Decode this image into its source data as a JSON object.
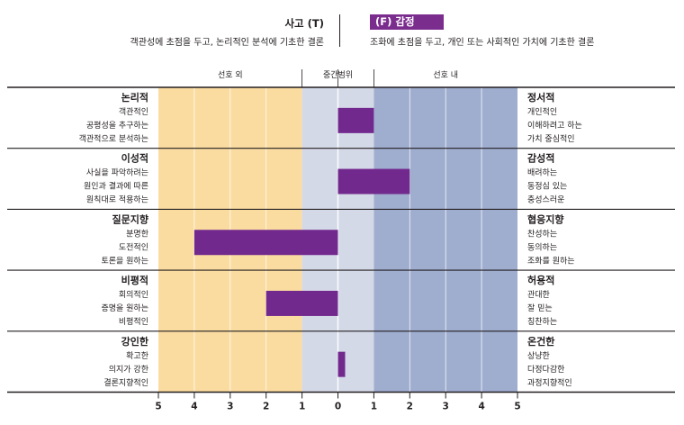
{
  "header": {
    "left_title": "사고 (T)",
    "left_subtitle": "객관성에 초점을 두고, 논리적인 분석에 기초한 결론",
    "right_title": "(F) 감정",
    "right_subtitle": "조화에 초점을 두고, 개인 또는 사회적인 가치에 기초한 결론",
    "highlight_color": "#7b2d8e"
  },
  "zones": {
    "left_label": "선호 외",
    "center_label": "중간범위",
    "right_label": "선호 내",
    "colors": {
      "left": "#fbdca0",
      "center": "#d4d9e8",
      "right": "#9fadcf"
    }
  },
  "chart_data": {
    "type": "bar",
    "orientation": "horizontal",
    "xlim": [
      -5,
      5
    ],
    "x_ticks": [
      -5,
      -4,
      -3,
      -2,
      -1,
      0,
      1,
      2,
      3,
      4,
      5
    ],
    "x_tick_labels": [
      "5",
      "4",
      "3",
      "2",
      "1",
      "0",
      "1",
      "2",
      "3",
      "4",
      "5"
    ],
    "bar_color": "#72298d",
    "rows": [
      {
        "left_title": "논리적",
        "left_items": [
          "객관적인",
          "공평성을 추구하는",
          "객관적으로 분석하는"
        ],
        "right_title": "정서적",
        "right_items": [
          "개인적인",
          "이해하려고 하는",
          "가치 중심적인"
        ],
        "value": 1
      },
      {
        "left_title": "이성적",
        "left_items": [
          "사실을 파악하려는",
          "원인과 결과에 따른",
          "원칙대로 적용하는"
        ],
        "right_title": "감성적",
        "right_items": [
          "배려하는",
          "동정심 있는",
          "충성스러운"
        ],
        "value": 2
      },
      {
        "left_title": "질문지향",
        "left_items": [
          "분명한",
          "도전적인",
          "토론을 원하는"
        ],
        "right_title": "협응지향",
        "right_items": [
          "찬성하는",
          "동의하는",
          "조화를 원하는"
        ],
        "value": -4
      },
      {
        "left_title": "비평적",
        "left_items": [
          "회의적인",
          "증명을 원하는",
          "비평적인"
        ],
        "right_title": "허용적",
        "right_items": [
          "관대한",
          "잘 믿는",
          "칭찬하는"
        ],
        "value": -2
      },
      {
        "left_title": "강인한",
        "left_items": [
          "확고한",
          "의지가 강한",
          "결론지향적인"
        ],
        "right_title": "온건한",
        "right_items": [
          "상냥한",
          "다정다감한",
          "과정지향적인"
        ],
        "value": 0.2
      }
    ]
  }
}
